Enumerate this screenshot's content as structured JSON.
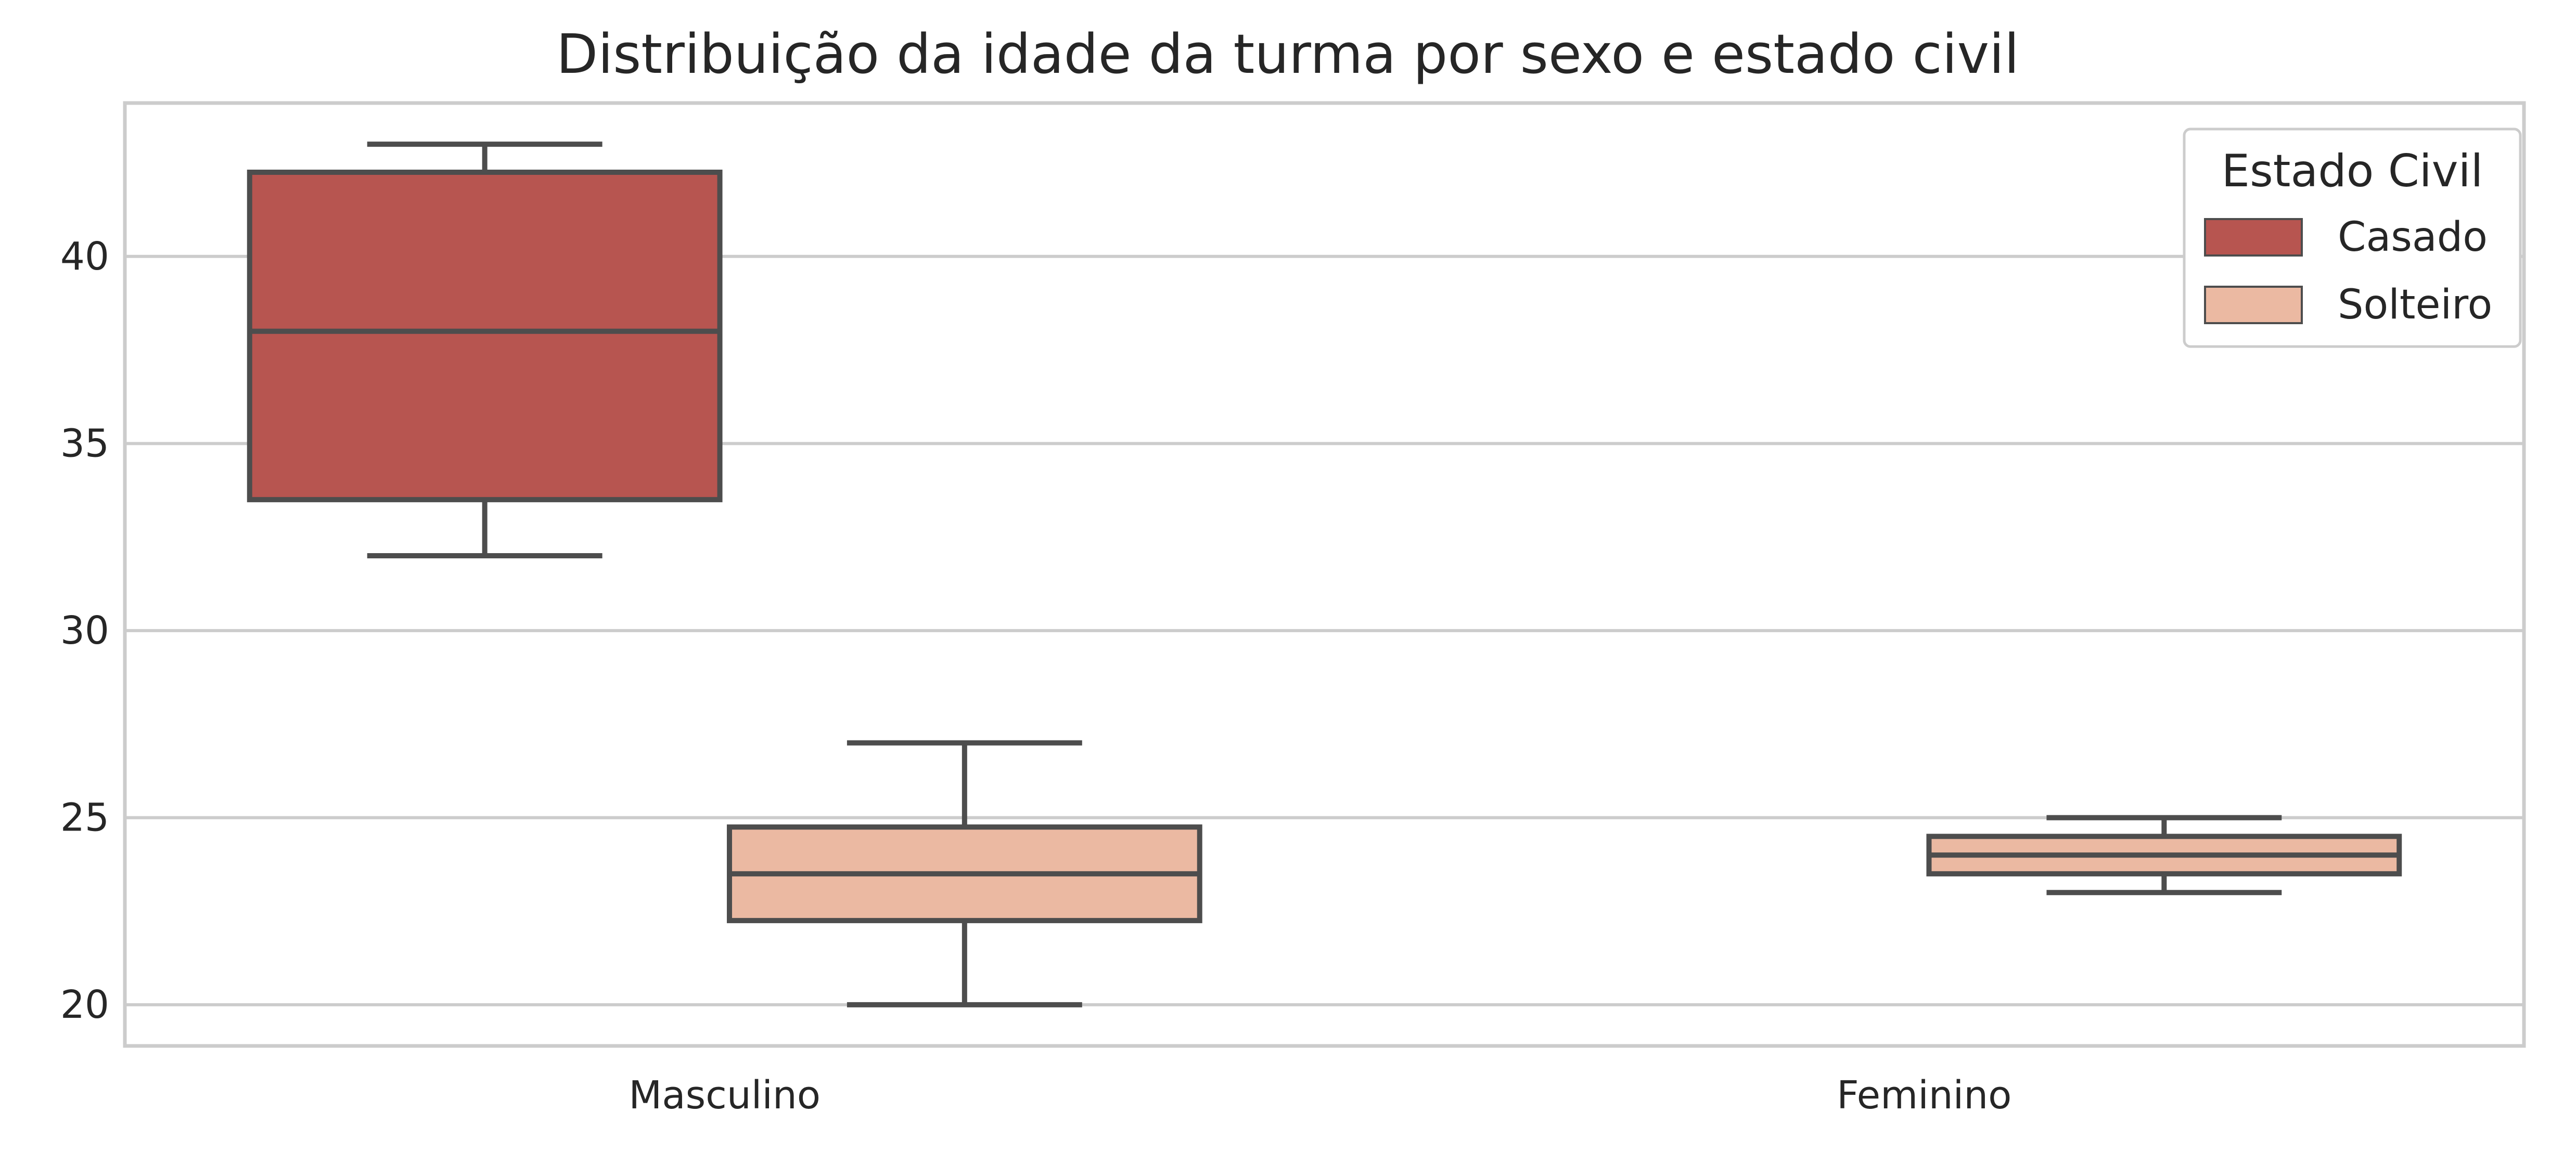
{
  "chart_data": {
    "type": "box",
    "title": "Distribuição da idade da turma por sexo e estado civil",
    "xlabel": "",
    "ylabel": "",
    "categories": [
      "Masculino",
      "Feminino"
    ],
    "ylim": [
      18.9,
      44.1
    ],
    "yticks": [
      20,
      25,
      30,
      35,
      40
    ],
    "grid": "horizontal",
    "legend": {
      "title": "Estado Civil",
      "placement": "top-right",
      "entries": [
        "Casado",
        "Solteiro"
      ]
    },
    "series": [
      {
        "name": "Casado",
        "color": "#b75550",
        "boxes": [
          {
            "category": "Masculino",
            "min": 32,
            "q1": 33.5,
            "median": 38,
            "q3": 42.25,
            "max": 43
          },
          null
        ]
      },
      {
        "name": "Solteiro",
        "color": "#ebb9a2",
        "boxes": [
          {
            "category": "Masculino",
            "min": 20,
            "q1": 22.25,
            "median": 23.5,
            "q3": 24.75,
            "max": 27
          },
          {
            "category": "Feminino",
            "min": 23,
            "q1": 23.5,
            "median": 24,
            "q3": 24.5,
            "max": 25
          }
        ]
      }
    ]
  }
}
